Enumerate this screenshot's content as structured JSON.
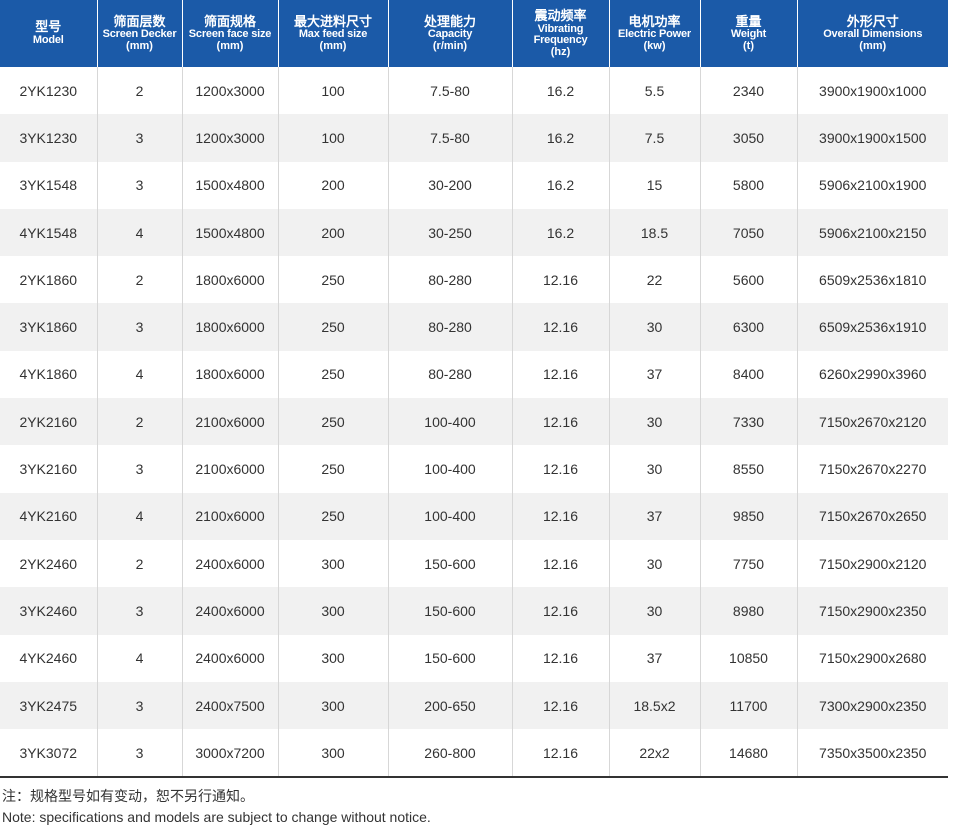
{
  "table": {
    "headers": [
      {
        "cn": "型号",
        "en": "Model",
        "unit": ""
      },
      {
        "cn": "筛面层数",
        "en": "Screen Decker",
        "unit": "(mm)"
      },
      {
        "cn": "筛面规格",
        "en": "Screen face size",
        "unit": "(mm)"
      },
      {
        "cn": "最大进料尺寸",
        "en": "Max feed size",
        "unit": "(mm)"
      },
      {
        "cn": "处理能力",
        "en": "Capacity",
        "unit": "(r/min)"
      },
      {
        "cn": "震动频率",
        "en": "Vibrating Frequency",
        "unit": "(hz)"
      },
      {
        "cn": "电机功率",
        "en": "Electric Power",
        "unit": "(kw)"
      },
      {
        "cn": "重量",
        "en": "Weight",
        "unit": "(t)"
      },
      {
        "cn": "外形尺寸",
        "en": "Overall Dimensions",
        "unit": "(mm)"
      }
    ],
    "rows": [
      [
        "2YK1230",
        "2",
        "1200x3000",
        "100",
        "7.5-80",
        "16.2",
        "5.5",
        "2340",
        "3900x1900x1000"
      ],
      [
        "3YK1230",
        "3",
        "1200x3000",
        "100",
        "7.5-80",
        "16.2",
        "7.5",
        "3050",
        "3900x1900x1500"
      ],
      [
        "3YK1548",
        "3",
        "1500x4800",
        "200",
        "30-200",
        "16.2",
        "15",
        "5800",
        "5906x2100x1900"
      ],
      [
        "4YK1548",
        "4",
        "1500x4800",
        "200",
        "30-250",
        "16.2",
        "18.5",
        "7050",
        "5906x2100x2150"
      ],
      [
        "2YK1860",
        "2",
        "1800x6000",
        "250",
        "80-280",
        "12.16",
        "22",
        "5600",
        "6509x2536x1810"
      ],
      [
        "3YK1860",
        "3",
        "1800x6000",
        "250",
        "80-280",
        "12.16",
        "30",
        "6300",
        "6509x2536x1910"
      ],
      [
        "4YK1860",
        "4",
        "1800x6000",
        "250",
        "80-280",
        "12.16",
        "37",
        "8400",
        "6260x2990x3960"
      ],
      [
        "2YK2160",
        "2",
        "2100x6000",
        "250",
        "100-400",
        "12.16",
        "30",
        "7330",
        "7150x2670x2120"
      ],
      [
        "3YK2160",
        "3",
        "2100x6000",
        "250",
        "100-400",
        "12.16",
        "30",
        "8550",
        "7150x2670x2270"
      ],
      [
        "4YK2160",
        "4",
        "2100x6000",
        "250",
        "100-400",
        "12.16",
        "37",
        "9850",
        "7150x2670x2650"
      ],
      [
        "2YK2460",
        "2",
        "2400x6000",
        "300",
        "150-600",
        "12.16",
        "30",
        "7750",
        "7150x2900x2120"
      ],
      [
        "3YK2460",
        "3",
        "2400x6000",
        "300",
        "150-600",
        "12.16",
        "30",
        "8980",
        "7150x2900x2350"
      ],
      [
        "4YK2460",
        "4",
        "2400x6000",
        "300",
        "150-600",
        "12.16",
        "37",
        "10850",
        "7150x2900x2680"
      ],
      [
        "3YK2475",
        "3",
        "2400x7500",
        "300",
        "200-650",
        "12.16",
        "18.5x2",
        "11700",
        "7300x2900x2350"
      ],
      [
        "3YK3072",
        "3",
        "3000x7200",
        "300",
        "260-800",
        "12.16",
        "22x2",
        "14680",
        "7350x3500x2350"
      ]
    ]
  },
  "note": {
    "cn": "注：规格型号如有变动，恕不另行通知。",
    "en": "Note: specifications and models are subject to change without notice."
  },
  "colors": {
    "header_bg": "#1b5aa8",
    "stripe_bg": "#f1f1f1"
  }
}
